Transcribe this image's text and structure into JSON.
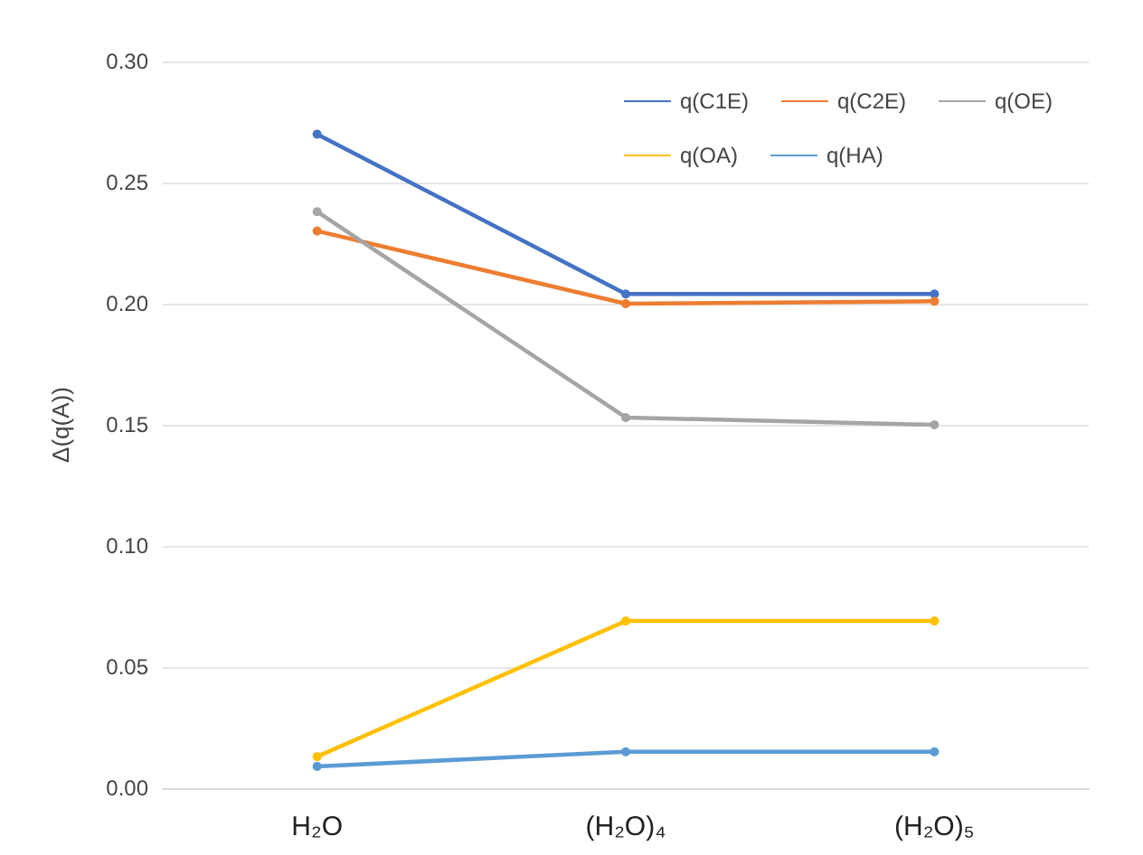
{
  "chart_data": {
    "type": "line",
    "ylabel": "Δ(q(A))",
    "categories": [
      "H₂O",
      "(H₂O)₄",
      "(H₂O)₅"
    ],
    "series": [
      {
        "name": "q(C1E)",
        "color": "#4472c4",
        "values": [
          0.27,
          0.204,
          0.204
        ]
      },
      {
        "name": "q(C2E)",
        "color": "#ed7d31",
        "values": [
          0.23,
          0.2,
          0.201
        ]
      },
      {
        "name": "q(OE)",
        "color": "#a5a5a5",
        "values": [
          0.238,
          0.153,
          0.15
        ]
      },
      {
        "name": "q(OA)",
        "color": "#ffc000",
        "values": [
          0.013,
          0.069,
          0.069
        ]
      },
      {
        "name": "q(HA)",
        "color": "#5b9bd5",
        "values": [
          0.009,
          0.015,
          0.015
        ]
      }
    ],
    "ylim": [
      0,
      0.3
    ],
    "yticks": [
      {
        "value": 0,
        "label": "0.00"
      },
      {
        "value": 0.05,
        "label": "0.05"
      },
      {
        "value": 0.1,
        "label": "0.10"
      },
      {
        "value": 0.15,
        "label": "0.15"
      },
      {
        "value": 0.2,
        "label": "0.20"
      },
      {
        "value": 0.25,
        "label": "0.25"
      },
      {
        "value": 0.3,
        "label": "0.30"
      }
    ],
    "grid": "y",
    "legend": "top right",
    "marker": "circle",
    "line_style": "solid"
  }
}
